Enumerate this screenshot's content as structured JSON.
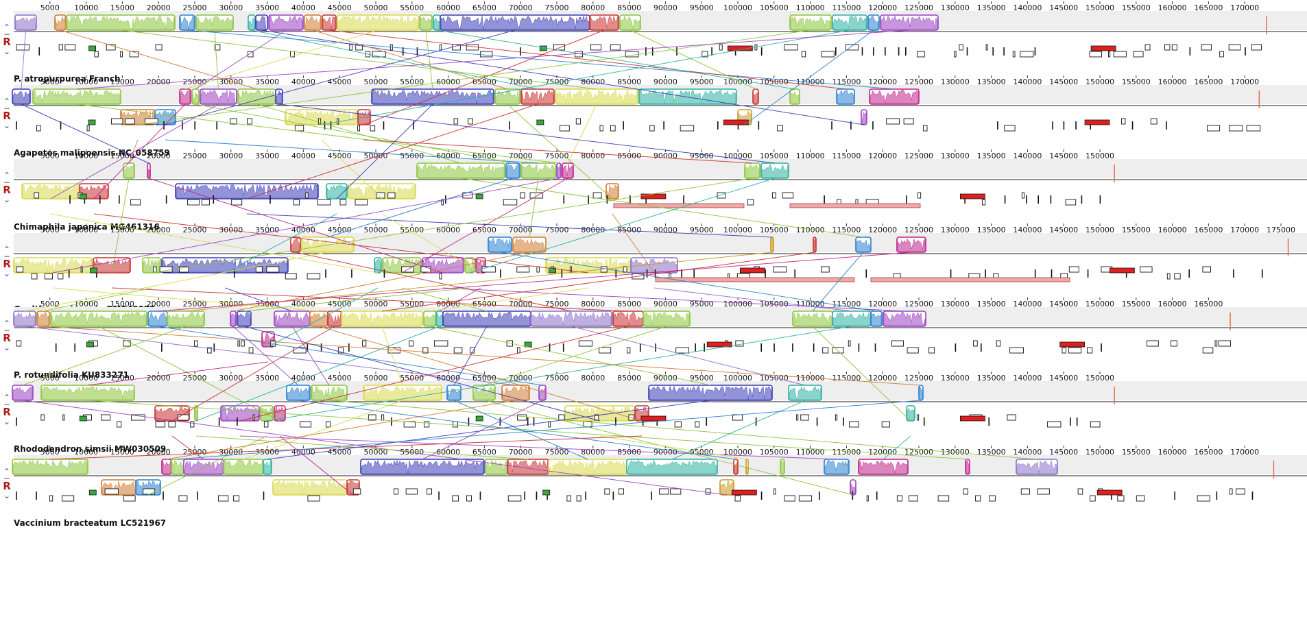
{
  "viewer": {
    "tool": "progressiveMauve",
    "controls": {
      "shift_up": "⌃",
      "minus": "−",
      "reverse": "R",
      "shift_down": "⌄"
    }
  },
  "genomes": [
    {
      "name": "P. atropurpurea Franch",
      "axis_max": 170000,
      "length_kb": 173
    },
    {
      "name": "Agapetes malipoensis NC_058759",
      "axis_max": 170000,
      "length_kb": 172
    },
    {
      "name": "Chimaphila japonica MG461316",
      "axis_max": 150000,
      "length_kb": 152
    },
    {
      "name": "Gaultheria sinensis OM048872",
      "axis_max": 175000,
      "length_kb": 176
    },
    {
      "name": "P. rotundifolia KU833271",
      "axis_max": 165000,
      "length_kb": 168
    },
    {
      "name": "Rhododendron simsii MW030509",
      "axis_max": 150000,
      "length_kb": 152
    },
    {
      "name": "Vaccinium bracteatum LC521967",
      "axis_max": 170000,
      "length_kb": 174
    }
  ],
  "lcb_colors": {
    "yellow": "#d9d84a",
    "green": "#8ac43a",
    "blue": "#3a3ab8",
    "purple": "#9a40c0",
    "red": "#c83030",
    "orange": "#d07a30",
    "teal": "#2ab0a0",
    "sky": "#2a80d0",
    "magenta": "#c0208a",
    "gold": "#c89a20",
    "pink": "#e08aa0",
    "lavender": "#8a70c8"
  }
}
